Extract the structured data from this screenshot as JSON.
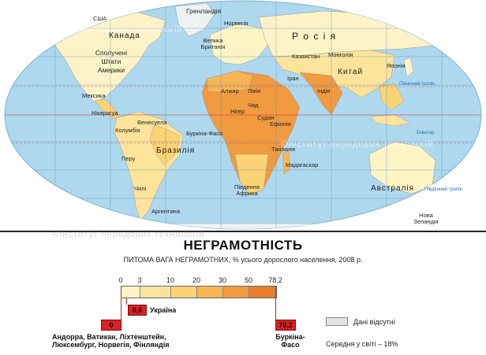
{
  "map_labels": {
    "usa": "США",
    "kanada": "Канада",
    "shtaty": "Сполучені Штати Америки",
    "meksyka": "Мексика",
    "nikaragua": "Нікарагуа",
    "kolumbiia": "Колумбія",
    "venesuela": "Венесуела",
    "brazyliia": "Бразилія",
    "peru": "Перу",
    "chyli": "Чилі",
    "argentyna": "Аргентина",
    "grenlandiia": "Гренландія",
    "norvegiia": "Норвегія",
    "brytaniia": "Велика Британія",
    "rosiia": "Р о с і я",
    "kazakhstan": "Казахстан",
    "mongoliia": "Монголія",
    "kytai": "Китай",
    "yaponiia": "Японія",
    "iran": "Іран",
    "indiia": "Індія",
    "alzhyr": "Алжир",
    "liviia": "Лівія",
    "chad": "Чад",
    "niger": "Нігер",
    "sudan": "Судан",
    "efiopiia": "Ефіопія",
    "burkina": "Буркіна-Фасо",
    "tanzaniia": "Танзанія",
    "madagaskar": "Мадагаскар",
    "pivdenna_afryka": "Південна Африка",
    "avstraliia": "Австралія",
    "nova_zelandiia": "Нова Зеландія",
    "ekvator": "Екватор",
    "pivnichnyi_tropik": "Північний тропік",
    "pivdennyi_tropik": "Південний тропік"
  },
  "watermark": "©Інститут передових технологій",
  "legend": {
    "title": "НЕГРАМОТНІСТЬ",
    "subtitle": "ПИТОМА ВАГА НЕГРАМОТНИХ, % усього дорослого населення, 2008 р.",
    "scale_ticks": [
      "0",
      "3",
      "10",
      "20",
      "30",
      "50",
      "78,2"
    ],
    "scale_colors": [
      "#fdf4c4",
      "#fde49a",
      "#fbd274",
      "#f7b556",
      "#f19a3f",
      "#e87e2e"
    ],
    "ukraine_value": "0,6",
    "ukraine_label": "Україна",
    "min_value": "0",
    "min_countries": "Андорра, Ватикан, Ліхтенштейн, Люксембург, Норвегія, Фінляндія",
    "max_value": "78,2",
    "max_country": "Буркіна-Фасо",
    "no_data_label": "Дані відсутні",
    "world_average": "Середня у світі – 18%",
    "no_data_color": "#e3e3e3"
  }
}
